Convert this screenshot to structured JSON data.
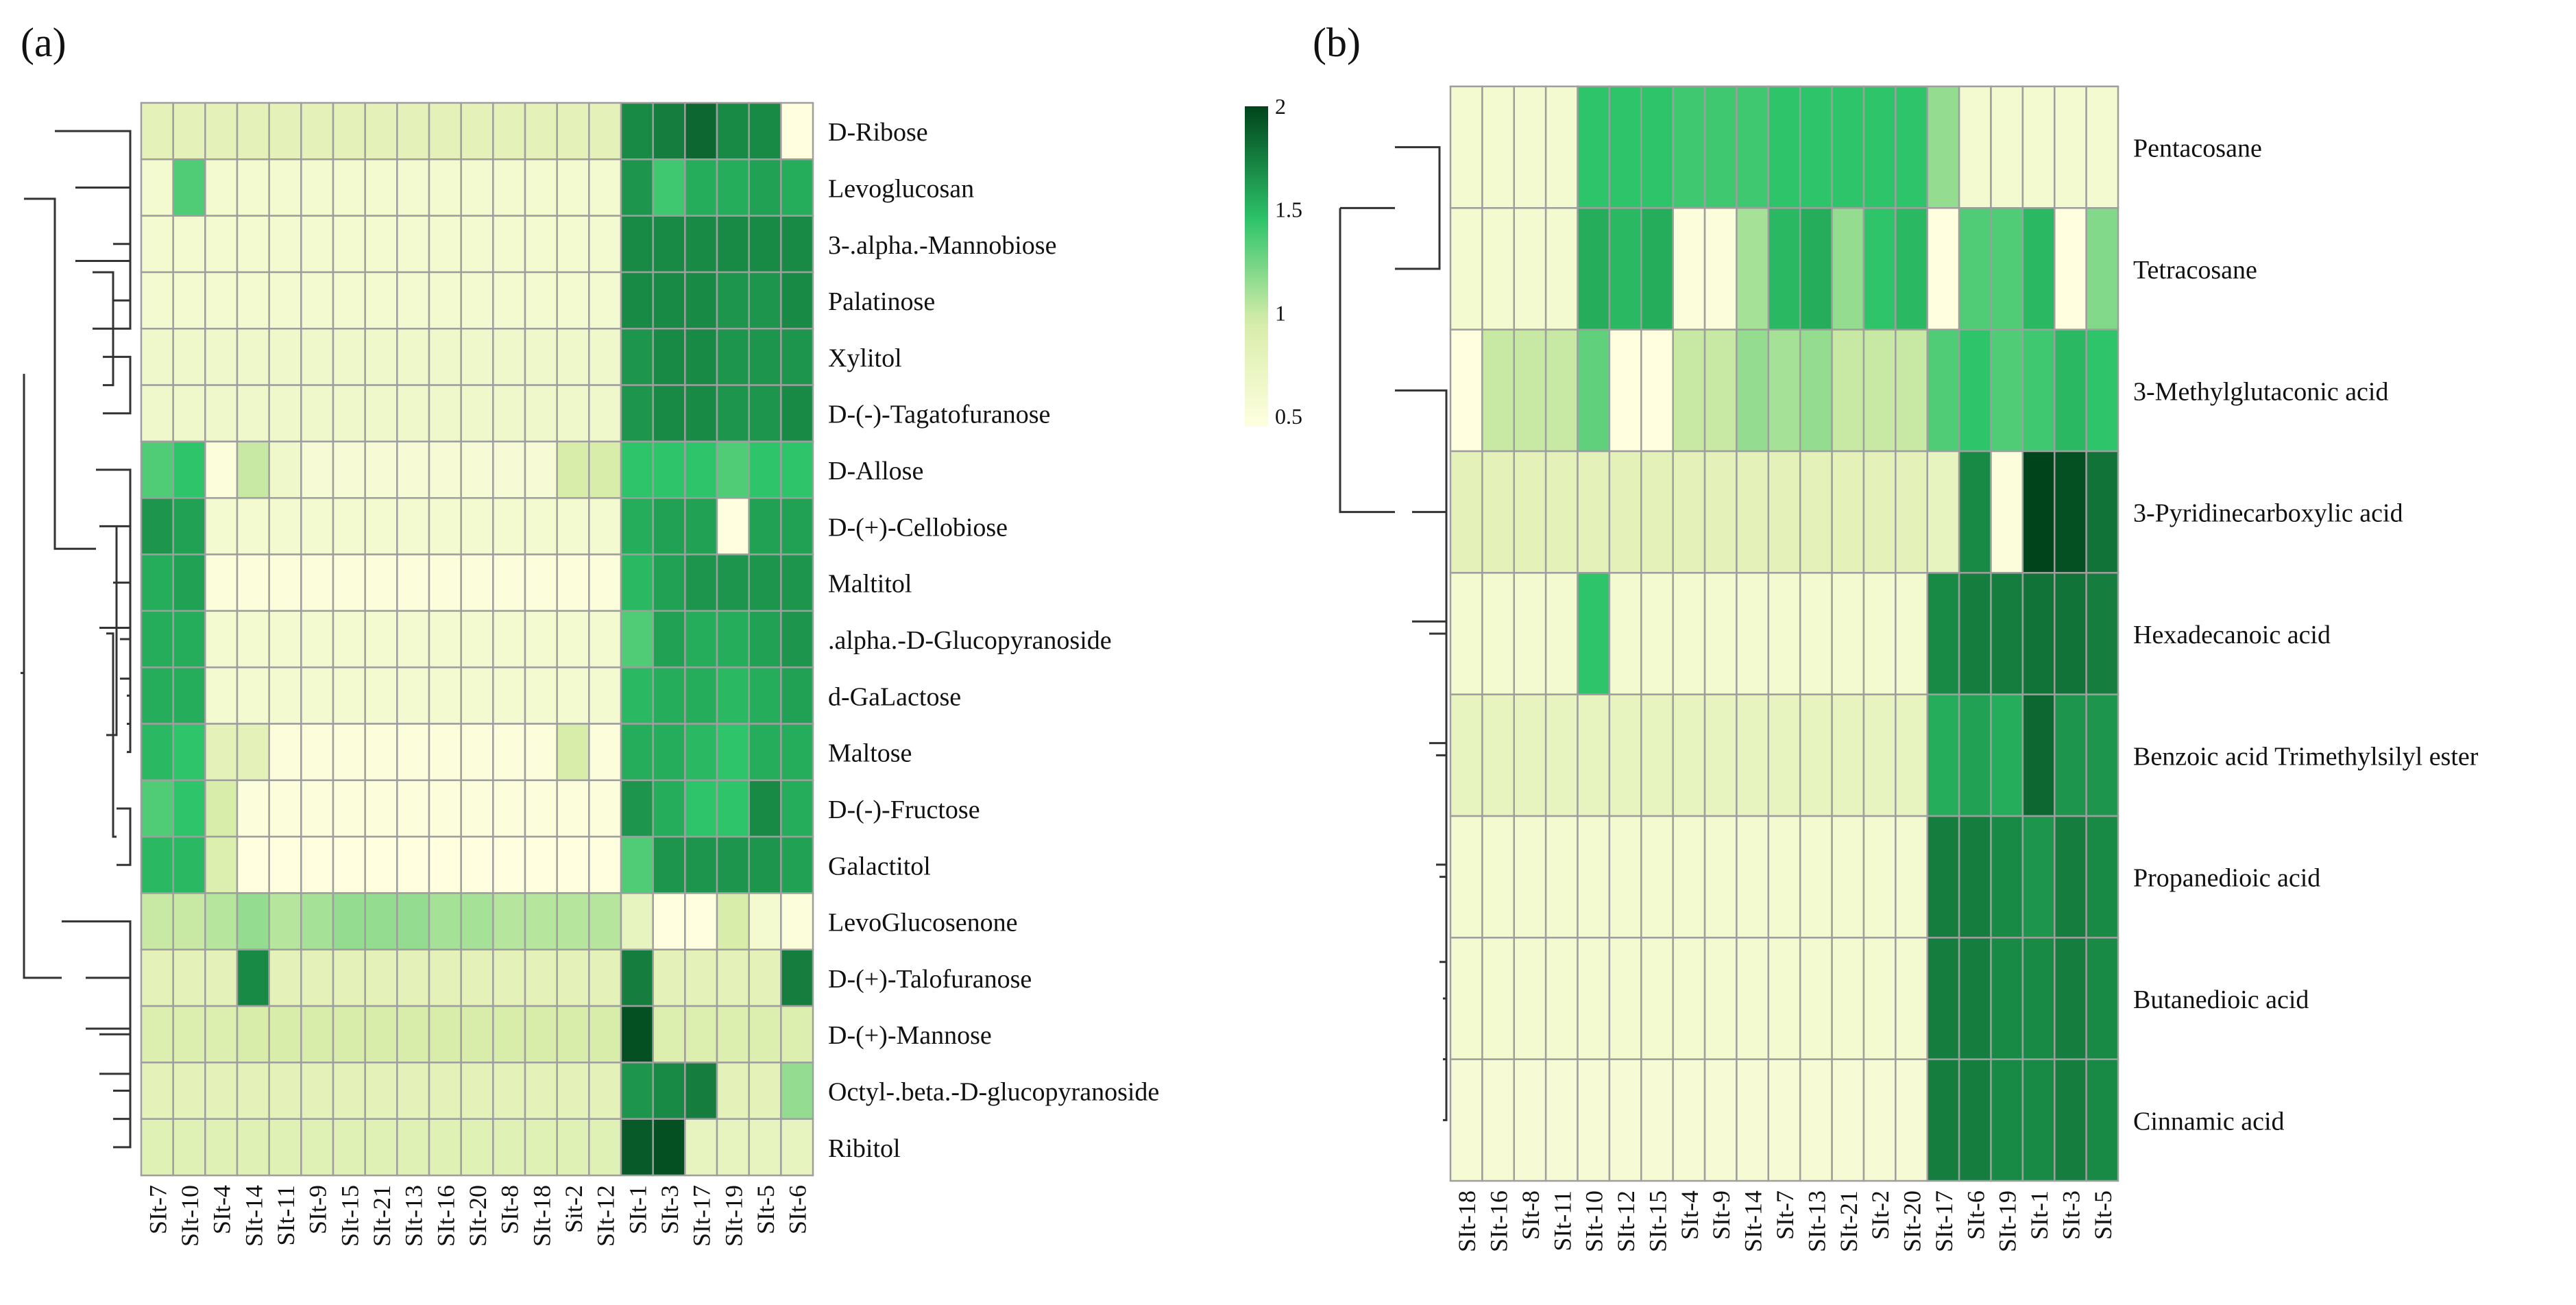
{
  "chart_data": [
    {
      "panel_label": "(a)",
      "type": "heatmap",
      "columns": [
        "SIt-7",
        "SIt-10",
        "SIt-4",
        "SIt-14",
        "SIt-11",
        "SIt-9",
        "SIt-15",
        "SIt-21",
        "SIt-13",
        "SIt-16",
        "SIt-20",
        "SIt-8",
        "SIt-18",
        "Sit-2",
        "SIt-12",
        "SIt-1",
        "SIt-3",
        "SIt-17",
        "SIt-19",
        "SIt-5",
        "SIt-6"
      ],
      "rows": [
        "D-Ribose",
        "Levoglucosan",
        "3-.alpha.-Mannobiose",
        "Palatinose",
        "Xylitol",
        "D-(-)-Tagatofuranose",
        "D-Allose",
        "D-(+)-Cellobiose",
        "Maltitol",
        ".alpha.-D-Glucopyranoside",
        "d-GaLactose",
        "Maltose",
        "D-(-)-Fructose",
        "Galactitol",
        "LevoGlucosenone",
        "D-(+)-Talofuranose",
        "D-(+)-Mannose",
        "Octyl-.beta.-D-glucopyranoside",
        "Ribitol"
      ],
      "values": [
        [
          0.8,
          0.8,
          0.8,
          0.8,
          0.8,
          0.8,
          0.8,
          0.8,
          0.8,
          0.8,
          0.8,
          0.8,
          0.8,
          0.8,
          0.8,
          1.7,
          1.75,
          1.85,
          1.7,
          1.7,
          0.45
        ],
        [
          0.6,
          1.35,
          0.6,
          0.6,
          0.6,
          0.6,
          0.6,
          0.6,
          0.6,
          0.6,
          0.6,
          0.6,
          0.6,
          0.6,
          0.6,
          1.65,
          1.4,
          1.55,
          1.55,
          1.6,
          1.55
        ],
        [
          0.6,
          0.6,
          0.6,
          0.6,
          0.6,
          0.6,
          0.6,
          0.6,
          0.6,
          0.6,
          0.6,
          0.6,
          0.6,
          0.6,
          0.6,
          1.7,
          1.7,
          1.7,
          1.7,
          1.7,
          1.7
        ],
        [
          0.6,
          0.6,
          0.6,
          0.6,
          0.6,
          0.6,
          0.6,
          0.6,
          0.6,
          0.6,
          0.6,
          0.6,
          0.6,
          0.6,
          0.6,
          1.7,
          1.7,
          1.7,
          1.65,
          1.65,
          1.7
        ],
        [
          0.65,
          0.65,
          0.65,
          0.65,
          0.65,
          0.65,
          0.65,
          0.65,
          0.65,
          0.65,
          0.65,
          0.65,
          0.65,
          0.65,
          0.65,
          1.65,
          1.7,
          1.7,
          1.65,
          1.65,
          1.65
        ],
        [
          0.65,
          0.65,
          0.65,
          0.65,
          0.65,
          0.65,
          0.65,
          0.65,
          0.65,
          0.65,
          0.65,
          0.65,
          0.65,
          0.65,
          0.65,
          1.65,
          1.7,
          1.7,
          1.65,
          1.65,
          1.7
        ],
        [
          1.35,
          1.45,
          0.5,
          1.0,
          0.65,
          0.55,
          0.55,
          0.55,
          0.55,
          0.55,
          0.55,
          0.55,
          0.55,
          0.95,
          0.95,
          1.45,
          1.45,
          1.45,
          1.35,
          1.45,
          1.45
        ],
        [
          1.65,
          1.6,
          0.6,
          0.6,
          0.6,
          0.6,
          0.6,
          0.6,
          0.6,
          0.6,
          0.6,
          0.6,
          0.6,
          0.6,
          0.6,
          1.55,
          1.6,
          1.6,
          0.45,
          1.6,
          1.6
        ],
        [
          1.55,
          1.6,
          0.5,
          0.5,
          0.5,
          0.5,
          0.5,
          0.5,
          0.5,
          0.5,
          0.5,
          0.5,
          0.5,
          0.5,
          0.5,
          1.5,
          1.6,
          1.65,
          1.65,
          1.65,
          1.65
        ],
        [
          1.55,
          1.55,
          0.6,
          0.6,
          0.6,
          0.6,
          0.6,
          0.6,
          0.6,
          0.6,
          0.6,
          0.6,
          0.6,
          0.6,
          0.6,
          1.35,
          1.6,
          1.55,
          1.55,
          1.6,
          1.65
        ],
        [
          1.55,
          1.55,
          0.6,
          0.6,
          0.6,
          0.6,
          0.6,
          0.6,
          0.6,
          0.6,
          0.6,
          0.6,
          0.6,
          0.6,
          0.6,
          1.5,
          1.55,
          1.55,
          1.5,
          1.55,
          1.6
        ],
        [
          1.5,
          1.45,
          0.8,
          0.8,
          0.5,
          0.5,
          0.5,
          0.5,
          0.5,
          0.5,
          0.5,
          0.5,
          0.5,
          0.95,
          0.5,
          1.55,
          1.55,
          1.5,
          1.45,
          1.55,
          1.55
        ],
        [
          1.35,
          1.45,
          0.95,
          0.5,
          0.5,
          0.5,
          0.5,
          0.5,
          0.5,
          0.5,
          0.5,
          0.5,
          0.5,
          0.5,
          0.5,
          1.65,
          1.55,
          1.45,
          1.45,
          1.7,
          1.55
        ],
        [
          1.5,
          1.5,
          0.9,
          0.45,
          0.45,
          0.45,
          0.45,
          0.45,
          0.45,
          0.45,
          0.45,
          0.45,
          0.45,
          0.45,
          0.45,
          1.35,
          1.65,
          1.65,
          1.65,
          1.65,
          1.6
        ],
        [
          1.0,
          1.0,
          1.05,
          1.15,
          1.05,
          1.1,
          1.15,
          1.15,
          1.15,
          1.1,
          1.1,
          1.05,
          1.05,
          1.05,
          1.05,
          0.75,
          0.45,
          0.45,
          0.95,
          0.6,
          0.5
        ],
        [
          0.8,
          0.8,
          0.8,
          1.7,
          0.8,
          0.8,
          0.8,
          0.8,
          0.8,
          0.8,
          0.8,
          0.8,
          0.8,
          0.8,
          0.8,
          1.75,
          0.8,
          0.8,
          0.8,
          0.8,
          1.75
        ],
        [
          0.9,
          0.9,
          0.9,
          0.95,
          0.95,
          0.95,
          0.95,
          0.95,
          0.95,
          0.95,
          0.95,
          0.95,
          0.95,
          0.95,
          0.95,
          1.95,
          0.9,
          0.9,
          0.9,
          0.9,
          0.9
        ],
        [
          0.8,
          0.8,
          0.8,
          0.8,
          0.8,
          0.8,
          0.8,
          0.8,
          0.8,
          0.8,
          0.8,
          0.8,
          0.8,
          0.8,
          0.8,
          1.65,
          1.7,
          1.75,
          0.8,
          0.8,
          1.15
        ],
        [
          0.85,
          0.85,
          0.85,
          0.85,
          0.85,
          0.85,
          0.85,
          0.85,
          0.85,
          0.85,
          0.85,
          0.85,
          0.85,
          0.85,
          0.85,
          1.9,
          1.95,
          0.75,
          0.75,
          0.75,
          0.75
        ]
      ],
      "colorbar": {
        "min": 0.45,
        "max": 2,
        "ticks": [
          "0.5",
          "1",
          "1.5",
          "2"
        ]
      },
      "colors": {
        "low": "#ffffe0",
        "mid1": "#d8edaa",
        "mid2": "#2ec46a",
        "high": "#00441b",
        "grid": "#9e9e9e"
      }
    },
    {
      "panel_label": "(b)",
      "type": "heatmap",
      "columns": [
        "SIt-18",
        "SIt-16",
        "SIt-8",
        "SIt-11",
        "SIt-10",
        "SIt-12",
        "SIt-15",
        "SIt-4",
        "SIt-9",
        "SIt-14",
        "SIt-7",
        "SIt-13",
        "SIt-21",
        "SIt-2",
        "SIt-20",
        "SIt-17",
        "SIt-6",
        "SIt-19",
        "SIt-1",
        "SIt-3",
        "SIt-5"
      ],
      "rows": [
        "Pentacosane",
        "Tetracosane",
        "3-Methylglutaconic acid",
        "3-Pyridinecarboxylic acid",
        "Hexadecanoic acid",
        "Benzoic acid Trimethylsilyl ester",
        "Propanedioic acid",
        "Butanedioic acid",
        "Cinnamic acid"
      ],
      "values": [
        [
          0.6,
          0.6,
          0.6,
          0.6,
          1.45,
          1.45,
          1.45,
          1.4,
          1.4,
          1.4,
          1.45,
          1.45,
          1.45,
          1.45,
          1.45,
          1.15,
          0.6,
          0.6,
          0.6,
          0.6,
          0.6
        ],
        [
          0.6,
          0.6,
          0.6,
          0.6,
          1.55,
          1.5,
          1.55,
          0.5,
          0.5,
          1.1,
          1.5,
          1.55,
          1.15,
          1.45,
          1.5,
          0.45,
          1.35,
          1.35,
          1.5,
          0.45,
          1.2
        ],
        [
          0.45,
          1.0,
          1.0,
          1.0,
          1.3,
          0.45,
          0.45,
          1.0,
          1.0,
          1.15,
          1.1,
          1.15,
          1.0,
          1.0,
          1.0,
          1.35,
          1.45,
          1.35,
          1.4,
          1.5,
          1.45
        ],
        [
          0.8,
          0.8,
          0.8,
          0.8,
          0.8,
          0.8,
          0.8,
          0.8,
          0.8,
          0.8,
          0.8,
          0.8,
          0.8,
          0.8,
          0.8,
          0.75,
          1.7,
          0.5,
          2.0,
          1.95,
          1.8
        ],
        [
          0.6,
          0.6,
          0.6,
          0.6,
          1.45,
          0.6,
          0.6,
          0.6,
          0.6,
          0.6,
          0.6,
          0.6,
          0.6,
          0.6,
          0.6,
          1.7,
          1.75,
          1.75,
          1.8,
          1.8,
          1.75
        ],
        [
          0.75,
          0.75,
          0.75,
          0.75,
          0.75,
          0.75,
          0.75,
          0.75,
          0.75,
          0.75,
          0.75,
          0.75,
          0.75,
          0.75,
          0.75,
          1.55,
          1.6,
          1.55,
          1.85,
          1.65,
          1.65
        ],
        [
          0.6,
          0.6,
          0.6,
          0.6,
          0.6,
          0.6,
          0.6,
          0.6,
          0.6,
          0.6,
          0.6,
          0.6,
          0.6,
          0.6,
          0.6,
          1.75,
          1.75,
          1.7,
          1.65,
          1.75,
          1.7
        ],
        [
          0.6,
          0.6,
          0.6,
          0.6,
          0.6,
          0.6,
          0.6,
          0.6,
          0.6,
          0.6,
          0.6,
          0.6,
          0.6,
          0.6,
          0.6,
          1.75,
          1.75,
          1.7,
          1.7,
          1.75,
          1.7
        ],
        [
          0.55,
          0.55,
          0.55,
          0.55,
          0.55,
          0.55,
          0.55,
          0.55,
          0.55,
          0.55,
          0.55,
          0.55,
          0.55,
          0.55,
          0.55,
          1.75,
          1.75,
          1.7,
          1.7,
          1.75,
          1.7
        ]
      ],
      "colors": {
        "low": "#ffffe0",
        "mid1": "#d8edaa",
        "mid2": "#2ec46a",
        "high": "#00441b",
        "grid": "#9e9e9e"
      }
    }
  ]
}
